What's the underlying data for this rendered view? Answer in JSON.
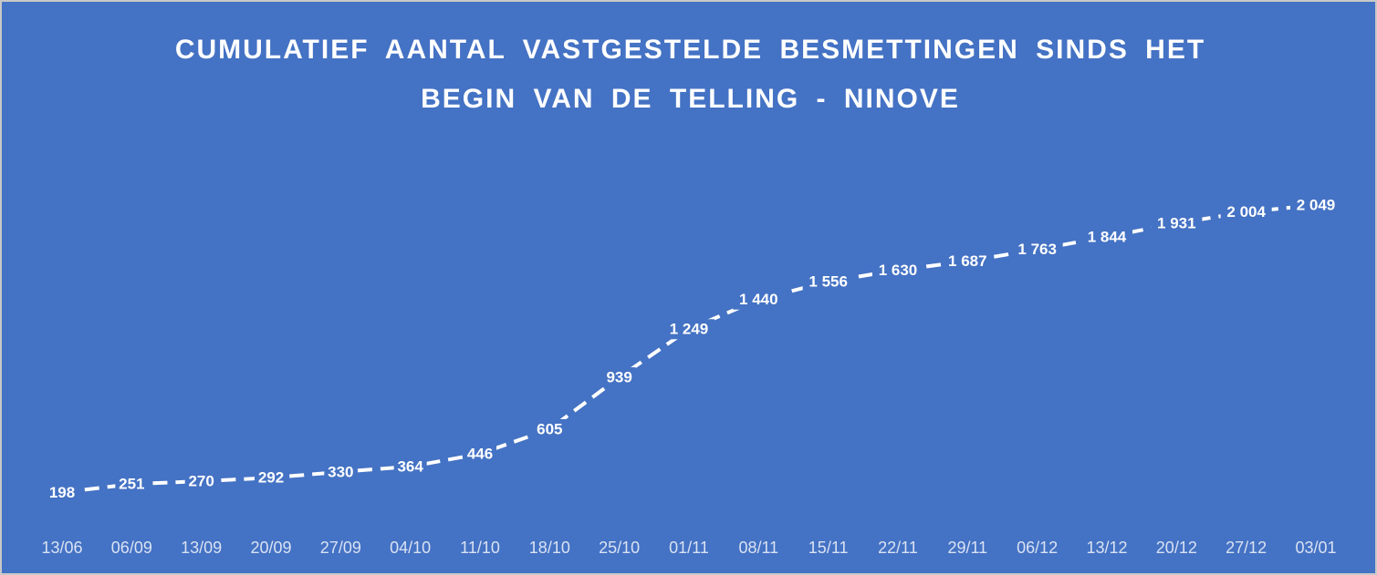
{
  "chart_data": {
    "type": "line",
    "title": "CUMULATIEF AANTAL VASTGESTELDE BESMETTINGEN SINDS HET BEGIN VAN DE TELLING - NINOVE",
    "categories": [
      "13/06",
      "06/09",
      "13/09",
      "20/09",
      "27/09",
      "04/10",
      "11/10",
      "18/10",
      "25/10",
      "01/11",
      "08/11",
      "15/11",
      "22/11",
      "29/11",
      "06/12",
      "13/12",
      "20/12",
      "27/12",
      "03/01"
    ],
    "values": [
      198,
      251,
      270,
      292,
      330,
      364,
      446,
      605,
      939,
      1249,
      1440,
      1556,
      1630,
      1687,
      1763,
      1844,
      1931,
      2004,
      2049
    ],
    "value_labels": [
      "198",
      "251",
      "270",
      "292",
      "330",
      "364",
      "446",
      "605",
      "939",
      "1 249",
      "1 440",
      "1 556",
      "1 630",
      "1 687",
      "1 763",
      "1 844",
      "1 931",
      "2 004",
      "2 049"
    ],
    "color": "#ffffff"
  }
}
